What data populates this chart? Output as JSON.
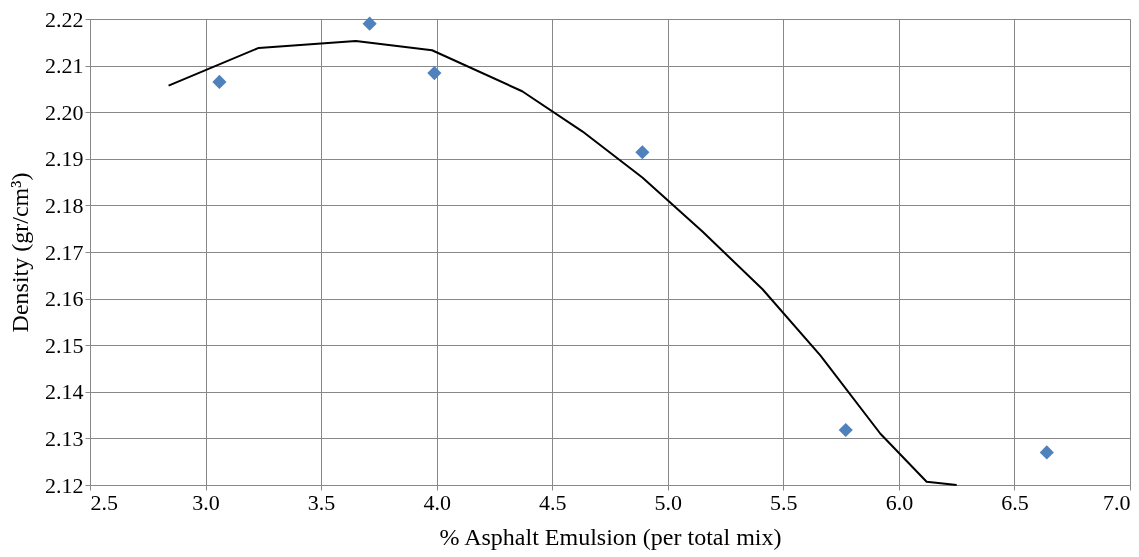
{
  "chart_data": {
    "type": "scatter",
    "xlabel": "% Asphalt Emulsion (per total mix)",
    "ylabel": "Density (gr/cm³)",
    "xlim": [
      2.5,
      7.0
    ],
    "xticks": [
      "2.5",
      {
        "value": 3,
        "label": "3.0"
      },
      "3.5",
      {
        "value": 4,
        "label": "4.0"
      },
      "4.5",
      {
        "value": 5,
        "label": "5.0"
      },
      "5.5",
      {
        "value": 6,
        "label": "6.0"
      },
      "6.5",
      {
        "value": 7,
        "label": "7.0"
      }
    ],
    "ylim": [
      2.12,
      2.22
    ],
    "yticks": [
      2.12,
      2.13,
      2.14,
      2.15,
      2.16,
      2.17,
      2.18,
      2.19,
      {
        "value": 2.2,
        "label": "2.20"
      },
      2.21,
      2.22
    ],
    "grid": true,
    "legend": false,
    "marker": "diamond",
    "series": [
      {
        "type": "scatter",
        "color": "#4f81bd",
        "x": [
          3.06,
          3.71,
          3.99,
          4.89,
          5.77,
          6.64
        ],
        "values": [
          2.2065,
          2.219,
          2.2084,
          2.1914,
          2.1318,
          2.127
        ]
      },
      {
        "type": "line",
        "color": "#000000",
        "marker": "none",
        "line_style": "solid",
        "x": [
          2.84,
          3.23,
          3.65,
          3.98,
          4.37,
          4.63,
          4.89,
          5.15,
          5.41,
          5.66,
          5.92,
          6.12,
          6.25
        ],
        "values": [
          2.2057,
          2.2138,
          2.2153,
          2.2133,
          2.2045,
          2.1959,
          2.186,
          2.1744,
          2.162,
          2.1478,
          2.131,
          2.1207,
          2.12
        ]
      }
    ]
  }
}
